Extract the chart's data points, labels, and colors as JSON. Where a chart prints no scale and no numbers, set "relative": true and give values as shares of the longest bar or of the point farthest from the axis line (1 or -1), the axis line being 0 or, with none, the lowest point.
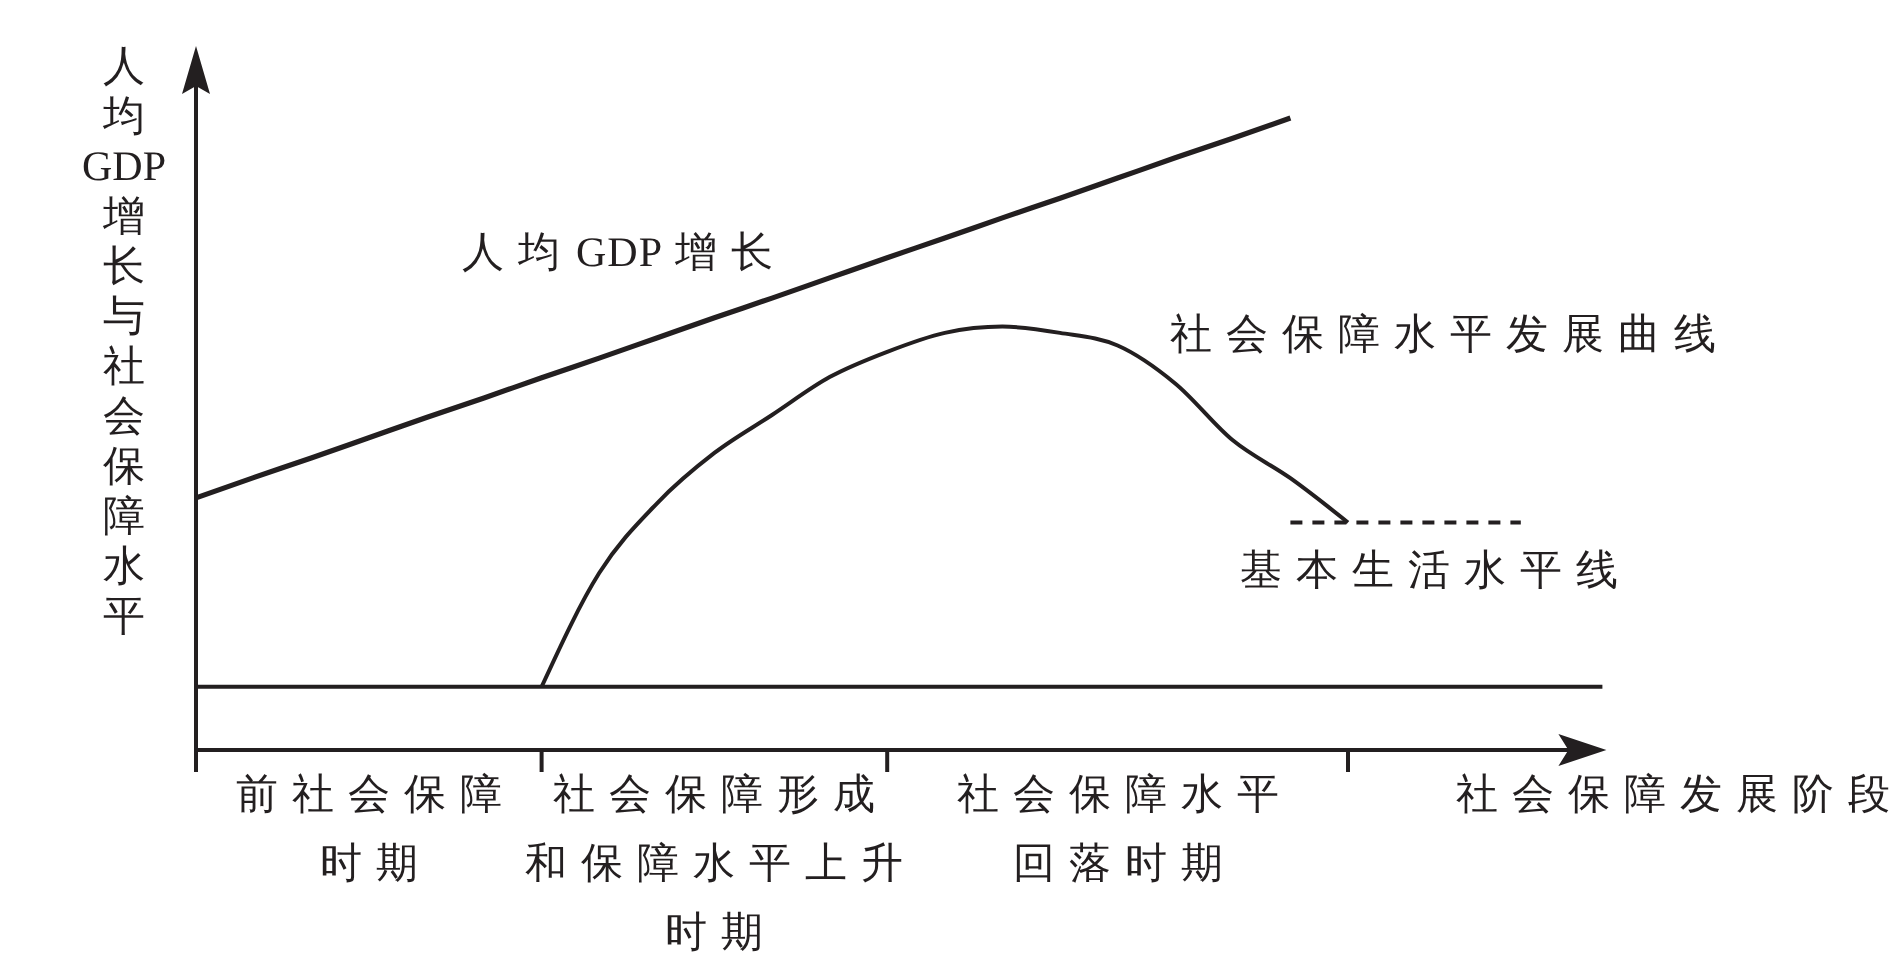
{
  "chart_data": {
    "type": "line",
    "relative": true,
    "ylabel": "人均GDP增长与社会保障水平",
    "xlabel": "社会保障发展阶段",
    "categories": [
      null,
      null,
      null,
      "前社会保障时期",
      null,
      null,
      null,
      null,
      null,
      "社会保障形成和保障水平上升时期",
      null,
      null,
      null,
      null,
      null,
      null,
      "社会保障水平回落时期",
      null,
      null,
      null,
      null,
      null,
      null,
      null,
      null
    ],
    "line_style": "solid",
    "ref_lines": [
      {
        "axis": "y",
        "value": 0.1
      }
    ],
    "series": [
      {
        "name": "人均GDP增长",
        "color": "#231f20",
        "values": [
          0.399,
          0.431,
          0.462,
          0.494,
          0.526,
          0.557,
          0.589,
          0.62,
          0.652,
          0.684,
          0.715,
          0.747,
          0.779,
          0.81,
          0.842,
          0.873,
          0.905,
          0.937,
          0.968,
          1,
          null,
          null,
          null,
          null,
          null
        ]
      },
      {
        "name": "社会保障水平发展曲线",
        "color": "#231f20",
        "values": [
          null,
          null,
          null,
          null,
          null,
          null,
          0.1,
          0.28,
          0.39,
          0.47,
          0.53,
          0.59,
          0.63,
          0.66,
          0.67,
          0.66,
          0.64,
          0.58,
          0.49,
          0.43,
          0.36,
          null,
          null,
          null,
          null
        ]
      },
      {
        "name": "基本生活水平线",
        "color": "#231f20",
        "line_style": "dashed",
        "values": [
          null,
          null,
          null,
          null,
          null,
          null,
          null,
          null,
          null,
          null,
          null,
          null,
          null,
          null,
          null,
          null,
          null,
          null,
          null,
          0.36,
          0.36,
          0.36,
          0.36,
          0.36,
          null
        ]
      }
    ]
  }
}
